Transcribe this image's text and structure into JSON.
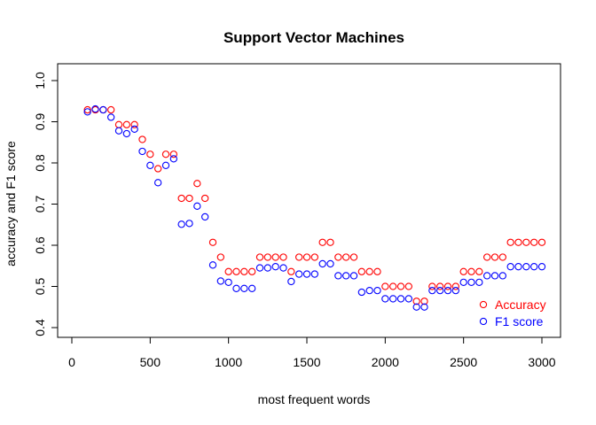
{
  "chart_data": {
    "type": "scatter",
    "title": "Support Vector Machines",
    "xlabel": "most frequent words",
    "ylabel": "accuracy and F1 score",
    "xlim": [
      0,
      3000
    ],
    "ylim": [
      0.4,
      1.0
    ],
    "xticks": [
      0,
      500,
      1000,
      1500,
      2000,
      2500,
      3000
    ],
    "yticks": [
      0.4,
      0.5,
      0.6,
      0.7,
      0.8,
      0.9,
      1.0
    ],
    "xtick_labels": [
      "0",
      "500",
      "1000",
      "1500",
      "2000",
      "2500",
      "3000"
    ],
    "ytick_labels": [
      "0.4",
      "0.5",
      "0.6",
      "0.7",
      "0.8",
      "0.9",
      "1.0"
    ],
    "legend_position": "bottom-right",
    "grid": false,
    "x": [
      100,
      150,
      200,
      250,
      300,
      350,
      400,
      450,
      500,
      550,
      600,
      650,
      700,
      750,
      800,
      850,
      900,
      950,
      1000,
      1050,
      1100,
      1150,
      1200,
      1250,
      1300,
      1350,
      1400,
      1450,
      1500,
      1550,
      1600,
      1650,
      1700,
      1750,
      1800,
      1850,
      1900,
      1950,
      2000,
      2050,
      2100,
      2150,
      2200,
      2250,
      2300,
      2350,
      2400,
      2450,
      2500,
      2550,
      2600,
      2650,
      2700,
      2750,
      2800,
      2850,
      2900,
      2950,
      3000
    ],
    "series": [
      {
        "name": "Accuracy",
        "color": "#ff0000",
        "values": [
          0.929,
          0.929,
          0.929,
          0.929,
          0.893,
          0.893,
          0.893,
          0.857,
          0.821,
          0.786,
          0.821,
          0.821,
          0.714,
          0.714,
          0.75,
          0.714,
          0.607,
          0.571,
          0.536,
          0.536,
          0.536,
          0.536,
          0.571,
          0.571,
          0.571,
          0.571,
          0.536,
          0.571,
          0.571,
          0.571,
          0.607,
          0.607,
          0.571,
          0.571,
          0.571,
          0.536,
          0.536,
          0.536,
          0.5,
          0.5,
          0.5,
          0.5,
          0.464,
          0.464,
          0.5,
          0.5,
          0.5,
          0.5,
          0.536,
          0.536,
          0.536,
          0.571,
          0.571,
          0.571,
          0.607,
          0.607,
          0.607,
          0.607,
          0.607
        ]
      },
      {
        "name": "F1 score",
        "color": "#0000ff",
        "values": [
          0.924,
          0.931,
          0.929,
          0.911,
          0.878,
          0.871,
          0.882,
          0.828,
          0.794,
          0.752,
          0.794,
          0.81,
          0.651,
          0.653,
          0.695,
          0.669,
          0.552,
          0.513,
          0.51,
          0.495,
          0.495,
          0.495,
          0.545,
          0.545,
          0.548,
          0.545,
          0.512,
          0.53,
          0.53,
          0.53,
          0.555,
          0.555,
          0.526,
          0.526,
          0.526,
          0.486,
          0.49,
          0.49,
          0.47,
          0.47,
          0.47,
          0.47,
          0.45,
          0.45,
          0.49,
          0.49,
          0.49,
          0.49,
          0.51,
          0.51,
          0.51,
          0.526,
          0.526,
          0.526,
          0.548,
          0.548,
          0.548,
          0.548,
          0.548
        ]
      }
    ]
  }
}
